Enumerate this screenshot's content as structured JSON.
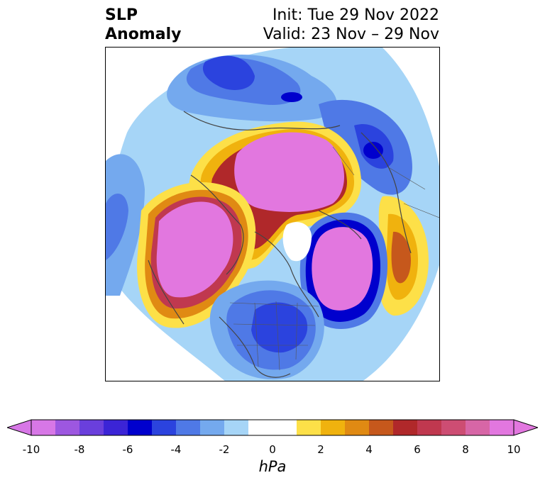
{
  "title": {
    "variable": "SLP",
    "field": "Anomaly",
    "init": "Init: Tue 29 Nov 2022",
    "valid": "Valid: 23 Nov – 29 Nov"
  },
  "colorbar": {
    "unit": "hPa",
    "min": -10,
    "max": 10,
    "step": 1,
    "ticks": [
      "-10",
      "-8",
      "-6",
      "-4",
      "-2",
      "0",
      "2",
      "4",
      "6",
      "8",
      "10"
    ],
    "colors": [
      "#d777e6",
      "#9d57e0",
      "#6a3fdc",
      "#3b24d6",
      "#0000cd",
      "#2b43de",
      "#4f79e6",
      "#74a9ee",
      "#a6d5f7",
      "#ffffff",
      "#ffffff",
      "#fde048",
      "#f0b20e",
      "#e08a13",
      "#c6581c",
      "#b0282a",
      "#c0384f",
      "#cd4d73",
      "#d766a6",
      "#e277df"
    ],
    "extend": "both"
  },
  "map": {
    "projection": "north-polar-stereographic",
    "field_colors": {
      "neg_strong": "#0000cd",
      "neg_mid": "#4f79e6",
      "neg_weak": "#a6d5f7",
      "pos_weak": "#fde048",
      "pos_mid": "#e08a13",
      "pos_strong": "#b0282a",
      "pos_max": "#e277df"
    }
  }
}
